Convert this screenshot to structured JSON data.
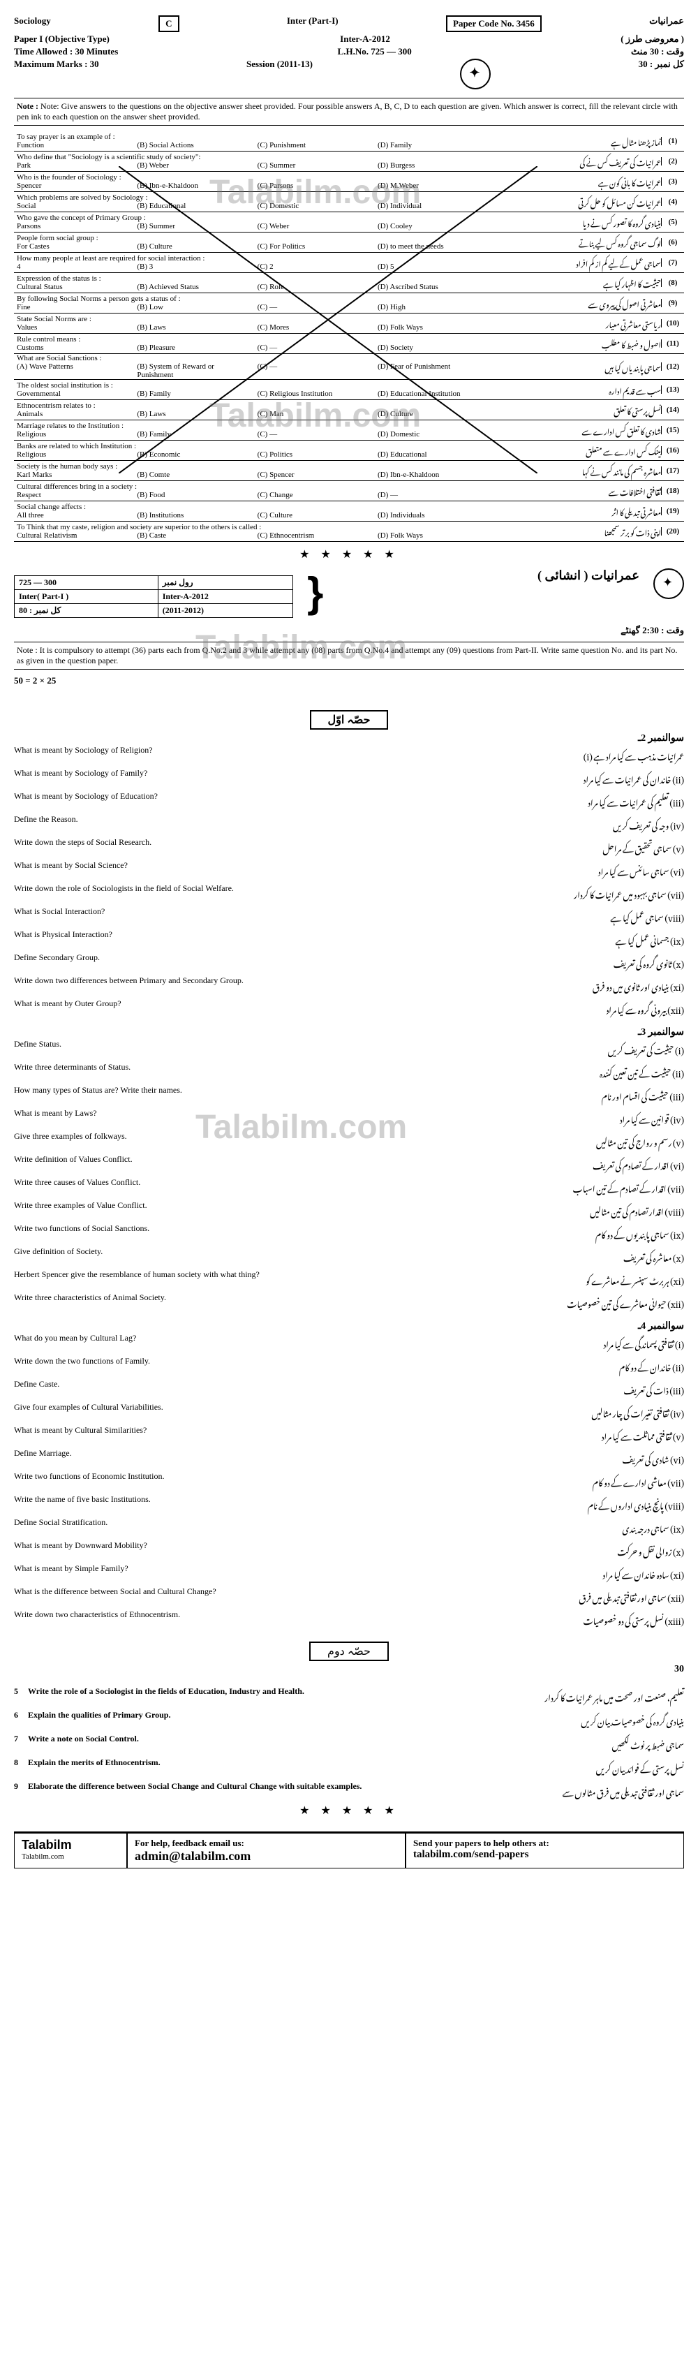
{
  "header": {
    "subject": "Sociology",
    "group_letter": "C",
    "paper_type": "Paper I (Objective Type)",
    "inter_part": "Inter (Part-I)",
    "inter_a": "Inter-A-2012",
    "paper_code": "Paper Code No. 3456",
    "time_allowed_label": "Time Allowed : 30 Minutes",
    "roll_no": "L.H.No. 725 — 300",
    "max_marks_label": "Maximum Marks : 30",
    "session": "Session (2011-13)",
    "urdu_subject": "عمرانیات",
    "urdu_paper": "( معروضی طرز )",
    "urdu_time": "وقت : 30 منٹ",
    "urdu_marks_30": "کل نمبر : 30"
  },
  "note_en": "Note: Give answers to the questions on the objective answer sheet provided. Four possible answers A, B, C, D to each question are given. Which answer is correct, fill the relevant circle with pen ink to each question on the answer sheet provided.",
  "note_label": "Note :",
  "mcq_intro_en": "To say prayer is an example of :",
  "mcq": [
    {
      "n": "(1)",
      "en": "To say prayer is an example of :",
      "opts": [
        "Function",
        "(B) Social Actions",
        "(C) Punishment",
        "(D) Family"
      ],
      "ur": "نماز پڑھنا مثال ہے"
    },
    {
      "n": "(2)",
      "en": "Who define that \"Sociology is a scientific study of society\":",
      "opts": [
        "Park",
        "(B) Weber",
        "(C) Summer",
        "(D) Burgess"
      ],
      "ur": "عمرانیات کی تعریف کس نے کی"
    },
    {
      "n": "(3)",
      "en": "Who is the founder of Sociology :",
      "opts": [
        "Spencer",
        "(B) Ibn-e-Khaldoon",
        "(C) Parsons",
        "(D) M.Weber"
      ],
      "ur": "عمرانیات کا بانی کون ہے"
    },
    {
      "n": "(4)",
      "en": "Which problems are solved by Sociology :",
      "opts": [
        "Social",
        "(B) Educational",
        "(C) Domestic",
        "(D) Individual"
      ],
      "ur": "عمرانیات کن مسائل کو حل کرتی"
    },
    {
      "n": "(5)",
      "en": "Who gave the concept of Primary Group :",
      "opts": [
        "Parsons",
        "(B) Summer",
        "(C) Weber",
        "(D) Cooley"
      ],
      "ur": "بنیادی گروہ کا تصور کس نے دیا"
    },
    {
      "n": "(6)",
      "en": "People form social group :",
      "opts": [
        "For Castes",
        "(B) Culture",
        "(C) For Politics",
        "(D) to meet the needs"
      ],
      "ur": "لوگ سماجی گروہ کس لیے بناتے"
    },
    {
      "n": "(7)",
      "en": "How many people at least are required for social interaction :",
      "opts": [
        "4",
        "(B) 3",
        "(C) 2",
        "(D) 5"
      ],
      "ur": "سماجی عمل کے لیے کم از کم افراد"
    },
    {
      "n": "(8)",
      "en": "Expression of the status is :",
      "opts": [
        "Cultural Status",
        "(B) Achieved Status",
        "(C) Role",
        "(D) Ascribed Status"
      ],
      "ur": "حیثیت کا اظہار کیا ہے"
    },
    {
      "n": "(9)",
      "en": "By following Social Norms a person gets a status of :",
      "opts": [
        "Fine",
        "(B) Low",
        "(C) —",
        "(D) High"
      ],
      "ur": "معاشرتی اصول کی پیروی سے"
    },
    {
      "n": "(10)",
      "en": "State Social Norms are :",
      "opts": [
        "Values",
        "(B) Laws",
        "(C) Mores",
        "(D) Folk Ways"
      ],
      "ur": "ریاستی معاشرتی معیار"
    },
    {
      "n": "(11)",
      "en": "Rule control means :",
      "opts": [
        "Customs",
        "(B) Pleasure",
        "(C) —",
        "(D) Society"
      ],
      "ur": "اصول و ضبط کا مطلب"
    },
    {
      "n": "(12)",
      "en": "What are Social Sanctions :",
      "opts": [
        "(A) Wave Patterns",
        "(B) System of Reward or Punishment",
        "(C) —",
        "(D) Fear of Punishment"
      ],
      "ur": "سماجی پابندیاں کیا ہیں"
    },
    {
      "n": "(13)",
      "en": "The oldest social institution is :",
      "opts": [
        "Governmental",
        "(B) Family",
        "(C) Religious Institution",
        "(D) Educational Institution"
      ],
      "ur": "سب سے قدیم ادارہ"
    },
    {
      "n": "(14)",
      "en": "Ethnocentrism relates to :",
      "opts": [
        "Animals",
        "(B) Laws",
        "(C) Man",
        "(D) Culture"
      ],
      "ur": "نسل پرستی کا تعلق"
    },
    {
      "n": "(15)",
      "en": "Marriage relates to the Institution :",
      "opts": [
        "Religious",
        "(B) Family",
        "(C) —",
        "(D) Domestic"
      ],
      "ur": "شادی کا تعلق کس ادارے سے"
    },
    {
      "n": "(16)",
      "en": "Banks are related to which Institution :",
      "opts": [
        "Religious",
        "(B) Economic",
        "(C) Politics",
        "(D) Educational"
      ],
      "ur": "بینک کس ادارے سے متعلق"
    },
    {
      "n": "(17)",
      "en": "Society is the human body says :",
      "opts": [
        "Karl Marks",
        "(B) Comte",
        "(C) Spencer",
        "(D) Ibn-e-Khaldoon"
      ],
      "ur": "معاشرہ جسم کی مانند کس نے کہا"
    },
    {
      "n": "(18)",
      "en": "Cultural differences bring in a society :",
      "opts": [
        "Respect",
        "(B) Food",
        "(C) Change",
        "(D) —"
      ],
      "ur": "ثقافتی اختلافات سے"
    },
    {
      "n": "(19)",
      "en": "Social change affects :",
      "opts": [
        "All three",
        "(B) Institutions",
        "(C) Culture",
        "(D) Individuals"
      ],
      "ur": "معاشرتی تبدیلی کا اثر"
    },
    {
      "n": "(20)",
      "en": "To Think that my caste, religion and society are superior to the others is called :",
      "opts": [
        "Cultural Relativism",
        "(B) Caste",
        "(C) Ethnocentrism",
        "(D) Folk Ways"
      ],
      "ur": "اپنی ذات کو برتر سمجھنا"
    }
  ],
  "section_b": {
    "roll": "725 — 300",
    "roll_ur": "رول نمبر",
    "part": "Inter( Part-I )",
    "a2012": "Inter-A-2012",
    "subject_ur": "عمرانیات ( انشائی )",
    "marks": "80 : کل نمبر",
    "session": "(2011-2012)",
    "time_ur": "وقت : 2:30 گھنٹے",
    "instr_en": "Note : It is compulsory to attempt (36) parts each from Q.No.2 and 3 while attempt any (08) parts from Q.No.4 and attempt any (09) questions from Part-II. Write same question No. and its part No. as given in the question paper.",
    "mark_scheme": "50 = 2 × 25",
    "q2_label": "سوالنمبر 2ـ"
  },
  "q2": [
    {
      "en": "What is meant by Sociology of Religion?",
      "ur": "عمرانیات مذہب سے کیا مراد ہے (i)"
    },
    {
      "en": "What is meant by Sociology of Family?",
      "ur": "(ii) خاندان کی عمرانیات سے کیا مراد"
    },
    {
      "en": "What is meant by Sociology of Education?",
      "ur": "(iii) تعلیم کی عمرانیات سے کیا مراد"
    },
    {
      "en": "Define the Reason.",
      "ur": "(iv) وجہ کی تعریف کریں"
    },
    {
      "en": "Write down the steps of Social Research.",
      "ur": "(v) سماجی تحقیق کے مراحل"
    },
    {
      "en": "What is meant by Social Science?",
      "ur": "(vi) سماجی سائنس سے کیا مراد"
    },
    {
      "en": "Write down the role of Sociologists in the field of Social Welfare.",
      "ur": "(vii) سماجی بہبود میں عمرانیات کا کردار"
    },
    {
      "en": "What is Social Interaction?",
      "ur": "(viii) سماجی عمل کیا ہے"
    },
    {
      "en": "What is Physical Interaction?",
      "ur": "(ix) جسمانی عمل کیا ہے"
    },
    {
      "en": "Define Secondary Group.",
      "ur": "(x) ثانوی گروہ کی تعریف"
    },
    {
      "en": "Write down two differences between Primary and Secondary Group.",
      "ur": "(xi) بنیادی اور ثانوی میں دو فرق"
    },
    {
      "en": "What is meant by Outer Group?",
      "ur": "(xii) بیرونی گروہ سے کیا مراد"
    }
  ],
  "q3_label": "سوالنمبر 3ـ",
  "q3": [
    {
      "en": "Define Status.",
      "ur": "(i) حیثیت کی تعریف کریں"
    },
    {
      "en": "Write three determinants of Status.",
      "ur": "(ii) حیثیت کے تین تعین کنندہ"
    },
    {
      "en": "How many types of Status are? Write their names.",
      "ur": "(iii) حیثیت کی اقسام اور نام"
    },
    {
      "en": "What is meant by Laws?",
      "ur": "(iv) قوانین سے کیا مراد"
    },
    {
      "en": "Give three examples of folkways.",
      "ur": "(v) رسم و رواج کی تین مثالیں"
    },
    {
      "en": "Write definition of Values Conflict.",
      "ur": "(vi) اقدار کے تصادم کی تعریف"
    },
    {
      "en": "Write three causes of Values Conflict.",
      "ur": "(vii) اقدار کے تصادم کے تین اسباب"
    },
    {
      "en": "Write three examples of Value Conflict.",
      "ur": "(viii) اقدار تصادم کی تین مثالیں"
    },
    {
      "en": "Write two functions of Social Sanctions.",
      "ur": "(ix) سماجی پابندیوں کے دو کام"
    },
    {
      "en": "Give definition of Society.",
      "ur": "(x) معاشرہ کی تعریف"
    },
    {
      "en": "Herbert Spencer give the resemblance of human society with what thing?",
      "ur": "(xi) ہربرٹ سپنسر نے معاشرے کو"
    },
    {
      "en": "Write three characteristics of Animal Society.",
      "ur": "(xii) حیوانی معاشرے کی تین خصوصیات"
    }
  ],
  "q4_label": "سوالنمبر 4ـ",
  "q4": [
    {
      "en": "What do you mean by Cultural Lag?",
      "ur": "(i) ثقافتی پسماندگی سے کیا مراد"
    },
    {
      "en": "Write down the two functions of Family.",
      "ur": "(ii) خاندان کے دو کام"
    },
    {
      "en": "Define Caste.",
      "ur": "(iii) ذات کی تعریف"
    },
    {
      "en": "Give four examples of Cultural Variabilities.",
      "ur": "(iv) ثقافتی تغیرات کی چار مثالیں"
    },
    {
      "en": "What is meant by Cultural Similarities?",
      "ur": "(v) ثقافتی مماثلت سے کیا مراد"
    },
    {
      "en": "Define Marriage.",
      "ur": "(vi) شادی کی تعریف"
    },
    {
      "en": "Write two functions of Economic Institution.",
      "ur": "(vii) معاشی ادارے کے دو کام"
    },
    {
      "en": "Write the name of five basic Institutions.",
      "ur": "(viii) پانچ بنیادی اداروں کے نام"
    },
    {
      "en": "Define Social Stratification.",
      "ur": "(ix) سماجی درجہ بندی"
    },
    {
      "en": "What is meant by Downward Mobility?",
      "ur": "(x) زوالی نقل و حرکت"
    },
    {
      "en": "What is meant by Simple Family?",
      "ur": "(xi) سادہ خاندان سے کیا مراد"
    },
    {
      "en": "What is the difference between Social and Cultural Change?",
      "ur": "(xii) سماجی اور ثقافتی تبدیلی میں فرق"
    },
    {
      "en": "Write down two characteristics of Ethnocentrism.",
      "ur": "(xiii) نسل پرستی کی دو خصوصیات"
    }
  ],
  "part2_label": "حصّہ دوم",
  "marks_30": "30",
  "sec_c": [
    {
      "n": "5",
      "en": "Write the role of a Sociologist in the fields of Education, Industry and Health.",
      "ur": "تعلیم، صنعت اور صحت میں ماہر عمرانیات کا کردار"
    },
    {
      "n": "6",
      "en": "Explain the qualities of Primary Group.",
      "ur": "بنیادی گروہ کی خصوصیات بیان کریں"
    },
    {
      "n": "7",
      "en": "Write a note on Social Control.",
      "ur": "سماجی ضبط پر نوٹ لکھیں"
    },
    {
      "n": "8",
      "en": "Explain the merits of Ethnocentrism.",
      "ur": "نسل پرستی کے فوائد بیان کریں"
    },
    {
      "n": "9",
      "en": "Elaborate the difference between Social Change and Cultural Change with suitable examples.",
      "ur": "سماجی اور ثقافتی تبدیلی میں فرق مثالوں سے"
    }
  ],
  "footer": {
    "brand": "Talabilm",
    "brand_url": "Talabilm.com",
    "help": "For help, feedback email us:",
    "email": "admin@talabilm.com",
    "send": "Send your papers to help others at:",
    "send_url": "talabilm.com/send-papers"
  },
  "watermark": "Talabilm.com"
}
